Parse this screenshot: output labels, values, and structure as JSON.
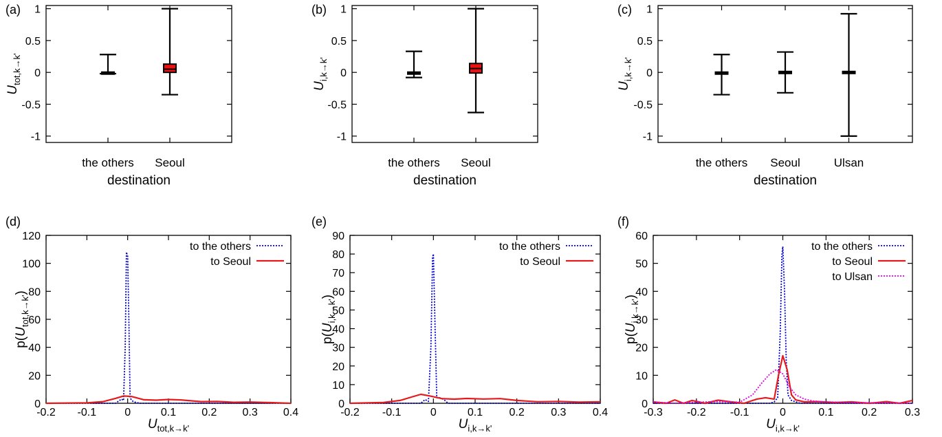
{
  "figure": {
    "panels": [
      {
        "label": "(a)",
        "ylabel_main": "U",
        "ylabel_sub": "tot,k→k'",
        "xlabel": "destination"
      },
      {
        "label": "(b)",
        "ylabel_main": "U",
        "ylabel_sub": "i,k→k'",
        "xlabel": "destination"
      },
      {
        "label": "(c)",
        "ylabel_main": "U",
        "ylabel_sub": "i,k→k'",
        "xlabel": "destination"
      },
      {
        "label": "(d)",
        "ylabel_pre": "p(",
        "ylabel_main": "U",
        "ylabel_sub": "tot,k→k'",
        "ylabel_post": ")",
        "xlabel_main": "U",
        "xlabel_sub": "tot,k→k'"
      },
      {
        "label": "(e)",
        "ylabel_pre": "p(",
        "ylabel_main": "U",
        "ylabel_sub": "i,k→k'",
        "ylabel_post": ")",
        "xlabel_main": "U",
        "xlabel_sub": "i,k→k'"
      },
      {
        "label": "(f)",
        "ylabel_pre": "p(",
        "ylabel_main": "U",
        "ylabel_sub": "i,k→k'",
        "ylabel_post": ")",
        "xlabel_main": "U",
        "xlabel_sub": "i,k→k'"
      }
    ]
  },
  "colors": {
    "others": "#0000cc",
    "seoul": "#e41a1c",
    "ulsan": "#e000e0",
    "box_fill": "#ee1111",
    "axis": "#000000"
  },
  "chart_data": [
    {
      "type": "box",
      "panel": "(a)",
      "xlabel": "destination",
      "ylabel": "U_tot,k→k'",
      "ylim": [
        -1.1,
        1.05
      ],
      "yticks": [
        -1,
        -0.5,
        0,
        0.5,
        1
      ],
      "ytick_labels": [
        "-1",
        "-0.5",
        "0",
        "0.5",
        "1"
      ],
      "categories": [
        "the others",
        "Seoul"
      ],
      "boxes": [
        {
          "min": -0.02,
          "q1": -0.005,
          "median": 0.0,
          "q3": 0.005,
          "max": 0.28,
          "filled": false
        },
        {
          "min": -0.35,
          "q1": 0.0,
          "median": 0.05,
          "q3": 0.13,
          "max": 1.0,
          "filled": true
        }
      ]
    },
    {
      "type": "box",
      "panel": "(b)",
      "xlabel": "destination",
      "ylabel": "U_i,k→k'",
      "ylim": [
        -1.1,
        1.05
      ],
      "yticks": [
        -1,
        -0.5,
        0,
        0.5,
        1
      ],
      "ytick_labels": [
        "-1",
        "-0.5",
        "0",
        "0.5",
        "1"
      ],
      "categories": [
        "the others",
        "Seoul"
      ],
      "boxes": [
        {
          "min": -0.08,
          "q1": -0.005,
          "median": 0.0,
          "q3": 0.005,
          "max": 0.33,
          "filled": false
        },
        {
          "min": -0.63,
          "q1": -0.01,
          "median": 0.06,
          "q3": 0.14,
          "max": 1.0,
          "filled": true
        }
      ]
    },
    {
      "type": "box",
      "panel": "(c)",
      "xlabel": "destination",
      "ylabel": "U_i,k→k'",
      "ylim": [
        -1.1,
        1.05
      ],
      "yticks": [
        -1,
        -0.5,
        0,
        0.5,
        1
      ],
      "ytick_labels": [
        "-1",
        "-0.5",
        "0",
        "0.5",
        "1"
      ],
      "categories": [
        "the others",
        "Seoul",
        "Ulsan"
      ],
      "boxes": [
        {
          "min": -0.35,
          "q1": -0.005,
          "median": 0.0,
          "q3": 0.005,
          "max": 0.28,
          "filled": false
        },
        {
          "min": -0.32,
          "q1": -0.015,
          "median": 0.0,
          "q3": 0.015,
          "max": 0.32,
          "filled": false
        },
        {
          "min": -1.0,
          "q1": -0.015,
          "median": 0.0,
          "q3": 0.015,
          "max": 0.92,
          "filled": false
        }
      ]
    },
    {
      "type": "line",
      "panel": "(d)",
      "xlabel": "U_tot,k→k'",
      "ylabel": "p(U_tot,k→k')",
      "xlim": [
        -0.2,
        0.4
      ],
      "ylim": [
        0,
        120
      ],
      "xticks": [
        -0.2,
        -0.1,
        0,
        0.1,
        0.2,
        0.3,
        0.4
      ],
      "xtick_labels": [
        "-0.2",
        "-0.1",
        "0",
        "0.1",
        "0.2",
        "0.3",
        "0.4"
      ],
      "yticks": [
        0,
        20,
        40,
        60,
        80,
        100,
        120
      ],
      "ytick_labels": [
        "0",
        "20",
        "40",
        "60",
        "80",
        "100",
        "120"
      ],
      "legend_position": "top-right",
      "series": [
        {
          "name": "to the others",
          "style": "dotted",
          "color_key": "others",
          "x": [
            -0.2,
            -0.03,
            -0.015,
            -0.01,
            -0.006,
            -0.003,
            0.0,
            0.003,
            0.006,
            0.01,
            0.015,
            0.03,
            0.4
          ],
          "y": [
            0,
            0,
            3,
            2,
            40,
            108,
            105,
            60,
            4,
            2,
            1,
            0,
            0
          ]
        },
        {
          "name": "to Seoul",
          "style": "solid",
          "color_key": "seoul",
          "x": [
            -0.2,
            -0.1,
            -0.06,
            -0.03,
            -0.01,
            0.01,
            0.04,
            0.07,
            0.1,
            0.13,
            0.18,
            0.22,
            0.26,
            0.3,
            0.35,
            0.4
          ],
          "y": [
            0,
            0.3,
            1.2,
            3.5,
            5.2,
            4.8,
            2.5,
            2.2,
            2.7,
            2.4,
            1.2,
            1.3,
            0.7,
            0.9,
            0.5,
            0
          ]
        }
      ]
    },
    {
      "type": "line",
      "panel": "(e)",
      "xlabel": "U_i,k→k'",
      "ylabel": "p(U_i,k→k')",
      "xlim": [
        -0.2,
        0.4
      ],
      "ylim": [
        0,
        90
      ],
      "xticks": [
        -0.2,
        -0.1,
        0,
        0.1,
        0.2,
        0.3,
        0.4
      ],
      "xtick_labels": [
        "-0.2",
        "-0.1",
        "0",
        "0.1",
        "0.2",
        "0.3",
        "0.4"
      ],
      "yticks": [
        0,
        10,
        20,
        30,
        40,
        50,
        60,
        70,
        80,
        90
      ],
      "ytick_labels": [
        "0",
        "10",
        "20",
        "30",
        "40",
        "50",
        "60",
        "70",
        "80",
        "90"
      ],
      "legend_position": "top-right",
      "series": [
        {
          "name": "to the others",
          "style": "dotted",
          "color_key": "others",
          "x": [
            -0.2,
            -0.03,
            -0.02,
            -0.012,
            -0.006,
            -0.002,
            0.0,
            0.004,
            0.008,
            0.015,
            0.025,
            0.035,
            0.4
          ],
          "y": [
            0,
            0,
            2,
            1,
            30,
            78,
            80,
            40,
            3,
            3,
            2,
            0,
            0
          ]
        },
        {
          "name": "to Seoul",
          "style": "solid",
          "color_key": "seoul",
          "x": [
            -0.2,
            -0.12,
            -0.08,
            -0.05,
            -0.03,
            -0.01,
            0.02,
            0.05,
            0.08,
            0.12,
            0.16,
            0.2,
            0.25,
            0.3,
            0.35,
            0.4
          ],
          "y": [
            0,
            0.4,
            1.5,
            3.5,
            4.8,
            4.0,
            2.5,
            2.2,
            2.6,
            2.3,
            2.5,
            1.5,
            0.8,
            1.0,
            0.6,
            0.8
          ]
        }
      ]
    },
    {
      "type": "line",
      "panel": "(f)",
      "xlabel": "U_i,k→k'",
      "ylabel": "p(U_i,k→k')",
      "xlim": [
        -0.3,
        0.3
      ],
      "ylim": [
        0,
        60
      ],
      "xticks": [
        -0.3,
        -0.2,
        -0.1,
        0,
        0.1,
        0.2,
        0.3
      ],
      "xtick_labels": [
        "-0.3",
        "-0.2",
        "-0.1",
        "0",
        "0.1",
        "0.2",
        "0.3"
      ],
      "yticks": [
        0,
        10,
        20,
        30,
        40,
        50,
        60
      ],
      "ytick_labels": [
        "0",
        "10",
        "20",
        "30",
        "40",
        "50",
        "60"
      ],
      "legend_position": "top-right",
      "series": [
        {
          "name": "to the others",
          "style": "dotted",
          "color_key": "others",
          "x": [
            -0.3,
            -0.03,
            -0.02,
            -0.012,
            -0.006,
            -0.002,
            0.0,
            0.004,
            0.008,
            0.012,
            0.02,
            0.04,
            0.3
          ],
          "y": [
            0,
            0,
            0.5,
            2,
            25,
            53,
            56,
            40,
            15,
            3,
            1,
            0,
            0
          ]
        },
        {
          "name": "to Seoul",
          "style": "solid",
          "color_key": "seoul",
          "x": [
            -0.3,
            -0.27,
            -0.25,
            -0.23,
            -0.21,
            -0.18,
            -0.15,
            -0.12,
            -0.09,
            -0.06,
            -0.04,
            -0.02,
            -0.01,
            0.0,
            0.01,
            0.02,
            0.03,
            0.05,
            0.08,
            0.12,
            0.16,
            0.2,
            0.24,
            0.27,
            0.3
          ],
          "y": [
            0.5,
            0,
            1.2,
            0,
            1.0,
            0,
            1.1,
            0.5,
            0,
            1.5,
            2.0,
            1.5,
            10,
            17,
            12,
            3,
            1.2,
            0.5,
            0.6,
            0.3,
            0.5,
            0,
            0.6,
            0,
            1.0
          ]
        },
        {
          "name": "to Ulsan",
          "style": "dotted",
          "color_key": "ulsan",
          "x": [
            -0.3,
            -0.25,
            -0.2,
            -0.15,
            -0.1,
            -0.07,
            -0.05,
            -0.03,
            -0.015,
            0.0,
            0.015,
            0.03,
            0.05,
            0.07,
            0.1,
            0.15,
            0.2,
            0.25,
            0.3
          ],
          "y": [
            0.5,
            0,
            0.4,
            0.6,
            0.4,
            3,
            7,
            10.5,
            12,
            10.5,
            6,
            3,
            1.5,
            0.8,
            0.5,
            0.3,
            0.2,
            0.1,
            0
          ]
        }
      ]
    }
  ]
}
